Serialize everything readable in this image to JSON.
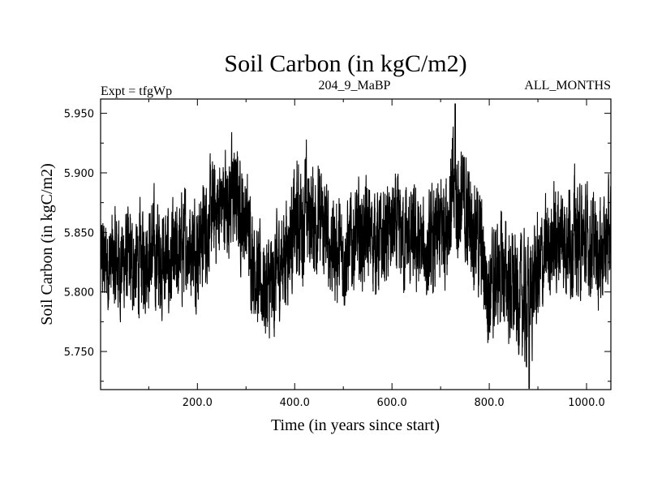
{
  "chart_data": {
    "type": "line",
    "title": "Soil Carbon (in kgC/m2)",
    "experiment_label": "Expt = tfgWp",
    "run_label": "204_9_MaBP",
    "months_label": "ALL_MONTHS",
    "xlabel": "Time (in years since start)",
    "ylabel": "Soil Carbon (in kgC/m2)",
    "xlim": [
      1,
      1050
    ],
    "ylim": [
      5.718,
      5.962
    ],
    "xticks": [
      200,
      400,
      600,
      800,
      1000
    ],
    "xtick_labels": [
      "200.0",
      "400.0",
      "600.0",
      "800.0",
      "1000.0"
    ],
    "yticks": [
      5.75,
      5.8,
      5.85,
      5.9,
      5.95
    ],
    "ytick_labels": [
      "5.750",
      "5.800",
      "5.850",
      "5.900",
      "5.950"
    ],
    "series": [
      {
        "name": "Soil Carbon",
        "color": "#000000",
        "envelope": {
          "x": [
            1,
            25,
            50,
            75,
            100,
            125,
            150,
            175,
            200,
            225,
            250,
            275,
            300,
            325,
            350,
            375,
            400,
            425,
            450,
            475,
            500,
            525,
            550,
            575,
            600,
            625,
            650,
            675,
            700,
            725,
            750,
            775,
            800,
            825,
            850,
            875,
            900,
            925,
            950,
            975,
            1000,
            1025,
            1050
          ],
          "mean": [
            5.825,
            5.823,
            5.826,
            5.822,
            5.835,
            5.828,
            5.82,
            5.842,
            5.838,
            5.86,
            5.875,
            5.88,
            5.86,
            5.81,
            5.8,
            5.83,
            5.855,
            5.865,
            5.86,
            5.84,
            5.83,
            5.845,
            5.85,
            5.84,
            5.852,
            5.845,
            5.84,
            5.83,
            5.85,
            5.88,
            5.87,
            5.85,
            5.8,
            5.82,
            5.8,
            5.79,
            5.815,
            5.84,
            5.85,
            5.845,
            5.84,
            5.835,
            5.845
          ],
          "amp": [
            0.04,
            0.045,
            0.045,
            0.045,
            0.045,
            0.05,
            0.05,
            0.045,
            0.045,
            0.045,
            0.045,
            0.05,
            0.045,
            0.045,
            0.05,
            0.045,
            0.05,
            0.055,
            0.045,
            0.045,
            0.045,
            0.045,
            0.045,
            0.045,
            0.045,
            0.045,
            0.045,
            0.045,
            0.05,
            0.055,
            0.05,
            0.05,
            0.05,
            0.05,
            0.05,
            0.055,
            0.05,
            0.045,
            0.05,
            0.05,
            0.045,
            0.045,
            0.045
          ]
        },
        "max": {
          "x": 730,
          "y": 5.958
        },
        "min": {
          "x": 882,
          "y": 5.719
        }
      }
    ]
  }
}
